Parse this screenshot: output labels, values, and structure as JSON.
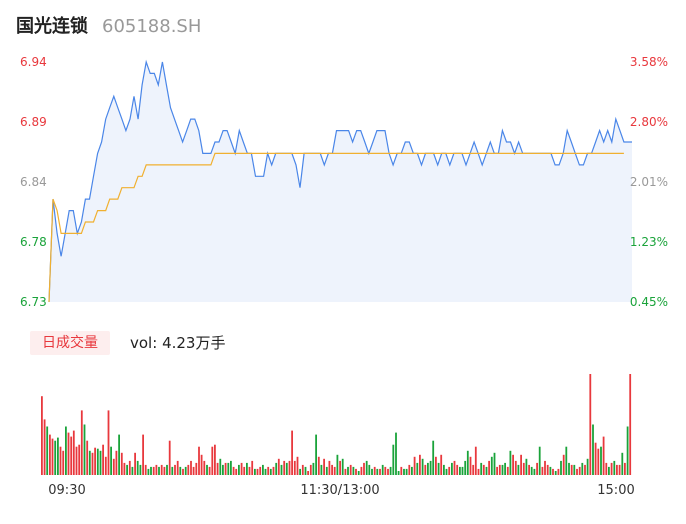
{
  "stock": {
    "name": "国光连锁",
    "code": "605188.SH"
  },
  "volume_panel": {
    "tab_label": "日成交量",
    "readout_label": "vol:",
    "readout_value": "4.23万手"
  },
  "colors": {
    "up": "#e8383d",
    "down": "#1aa33a",
    "neutral": "#999999",
    "price_line": "#4a86e8",
    "avg_line": "#f0b030",
    "area_fill": "#eef3fc"
  },
  "chart_data": [
    {
      "type": "line",
      "title": "",
      "x_ticks": [
        "09:30",
        "11:30/13:00",
        "15:00"
      ],
      "price_ticks": [
        "6.94",
        "6.89",
        "6.84",
        "6.78",
        "6.73"
      ],
      "pct_ticks": [
        "3.58%",
        "2.80%",
        "2.01%",
        "1.23%",
        "0.45%"
      ],
      "ylim": [
        6.73,
        6.94
      ],
      "series": [
        {
          "role": "price",
          "values": [
            6.73,
            6.82,
            6.79,
            6.77,
            6.79,
            6.81,
            6.81,
            6.79,
            6.8,
            6.82,
            6.82,
            6.84,
            6.86,
            6.87,
            6.89,
            6.9,
            6.91,
            6.9,
            6.89,
            6.88,
            6.89,
            6.91,
            6.89,
            6.92,
            6.94,
            6.93,
            6.93,
            6.92,
            6.94,
            6.92,
            6.9,
            6.89,
            6.88,
            6.87,
            6.88,
            6.89,
            6.89,
            6.88,
            6.86,
            6.86,
            6.86,
            6.87,
            6.87,
            6.88,
            6.88,
            6.87,
            6.86,
            6.88,
            6.87,
            6.86,
            6.86,
            6.84,
            6.84,
            6.84,
            6.86,
            6.85,
            6.86,
            6.86,
            6.86,
            6.86,
            6.86,
            6.85,
            6.83,
            6.86,
            6.86,
            6.86,
            6.86,
            6.86,
            6.85,
            6.86,
            6.86,
            6.88,
            6.88,
            6.88,
            6.88,
            6.87,
            6.88,
            6.88,
            6.87,
            6.86,
            6.87,
            6.88,
            6.88,
            6.88,
            6.86,
            6.85,
            6.86,
            6.86,
            6.87,
            6.87,
            6.86,
            6.86,
            6.85,
            6.86,
            6.86,
            6.86,
            6.85,
            6.86,
            6.86,
            6.85,
            6.86,
            6.86,
            6.86,
            6.85,
            6.86,
            6.87,
            6.86,
            6.85,
            6.86,
            6.87,
            6.86,
            6.86,
            6.88,
            6.87,
            6.87,
            6.86,
            6.87,
            6.86,
            6.86,
            6.86,
            6.86,
            6.86,
            6.86,
            6.86,
            6.86,
            6.85,
            6.85,
            6.86,
            6.88,
            6.87,
            6.86,
            6.85,
            6.85,
            6.86,
            6.86,
            6.87,
            6.88,
            6.87,
            6.88,
            6.87,
            6.89,
            6.88,
            6.87,
            6.87,
            6.87
          ],
          "avg": [
            6.73,
            6.82,
            6.81,
            6.79,
            6.79,
            6.79,
            6.79,
            6.79,
            6.79,
            6.8,
            6.8,
            6.8,
            6.81,
            6.81,
            6.81,
            6.82,
            6.82,
            6.82,
            6.83,
            6.83,
            6.83,
            6.83,
            6.84,
            6.84,
            6.85,
            6.85,
            6.85,
            6.85,
            6.85,
            6.85,
            6.85,
            6.85,
            6.85,
            6.85,
            6.85,
            6.85,
            6.85,
            6.85,
            6.85,
            6.85,
            6.85,
            6.86,
            6.86,
            6.86,
            6.86,
            6.86,
            6.86,
            6.86,
            6.86,
            6.86,
            6.86,
            6.86,
            6.86,
            6.86,
            6.86,
            6.86,
            6.86,
            6.86,
            6.86,
            6.86,
            6.86,
            6.86,
            6.86,
            6.86,
            6.86,
            6.86,
            6.86,
            6.86,
            6.86,
            6.86,
            6.86,
            6.86,
            6.86,
            6.86,
            6.86,
            6.86,
            6.86,
            6.86,
            6.86,
            6.86,
            6.86,
            6.86,
            6.86,
            6.86,
            6.86,
            6.86,
            6.86,
            6.86,
            6.86,
            6.86,
            6.86,
            6.86,
            6.86,
            6.86,
            6.86,
            6.86,
            6.86,
            6.86,
            6.86,
            6.86,
            6.86,
            6.86,
            6.86,
            6.86,
            6.86,
            6.86,
            6.86,
            6.86,
            6.86,
            6.86,
            6.86,
            6.86,
            6.86,
            6.86,
            6.86,
            6.86,
            6.86,
            6.86,
            6.86,
            6.86,
            6.86,
            6.86,
            6.86,
            6.86,
            6.86,
            6.86,
            6.86,
            6.86,
            6.86,
            6.86,
            6.86,
            6.86,
            6.86,
            6.86,
            6.86,
            6.86,
            6.86,
            6.86,
            6.86,
            6.86,
            6.86,
            6.86,
            6.86
          ]
        }
      ]
    },
    {
      "type": "bar",
      "title": "",
      "ylim": [
        0,
        100
      ],
      "values": [
        78,
        55,
        48,
        40,
        36,
        34,
        37,
        28,
        24,
        48,
        42,
        38,
        44,
        28,
        30,
        64,
        50,
        34,
        24,
        22,
        27,
        26,
        24,
        30,
        18,
        64,
        28,
        16,
        24,
        40,
        22,
        12,
        10,
        14,
        8,
        22,
        14,
        10,
        40,
        10,
        6,
        8,
        8,
        10,
        8,
        10,
        8,
        10,
        34,
        8,
        10,
        14,
        8,
        6,
        8,
        10,
        14,
        8,
        12,
        28,
        20,
        14,
        10,
        8,
        28,
        30,
        12,
        16,
        10,
        12,
        12,
        14,
        8,
        6,
        10,
        12,
        8,
        12,
        8,
        14,
        6,
        6,
        8,
        10,
        6,
        8,
        6,
        8,
        12,
        16,
        10,
        14,
        12,
        14,
        44,
        14,
        18,
        6,
        10,
        8,
        4,
        10,
        12,
        40,
        18,
        10,
        16,
        8,
        14,
        10,
        8,
        20,
        14,
        16,
        6,
        8,
        10,
        8,
        6,
        4,
        8,
        12,
        14,
        10,
        6,
        8,
        6,
        6,
        10,
        8,
        6,
        8,
        30,
        42,
        4,
        8,
        6,
        6,
        10,
        8,
        18,
        12,
        20,
        16,
        10,
        12,
        14,
        34,
        18,
        12,
        20,
        10,
        6,
        8,
        12,
        14,
        10,
        8,
        8,
        14,
        24,
        18,
        10,
        28,
        6,
        12,
        10,
        8,
        14,
        18,
        22,
        8,
        10,
        10,
        12,
        8,
        24,
        20,
        14,
        10,
        20,
        12,
        16,
        10,
        8,
        6,
        12,
        28,
        8,
        14,
        10,
        8,
        6,
        4,
        6,
        14,
        20,
        28,
        12,
        10,
        10,
        6,
        8,
        12,
        10,
        16,
        104,
        50,
        32,
        26,
        28,
        38,
        12,
        8,
        12,
        14,
        10,
        10,
        22,
        12,
        48,
        100
      ],
      "colors": [
        "r",
        "r",
        "g",
        "r",
        "r",
        "g",
        "g",
        "r",
        "r",
        "g",
        "r",
        "r",
        "r",
        "r",
        "r",
        "r",
        "g",
        "r",
        "g",
        "r",
        "r",
        "g",
        "g",
        "r",
        "r",
        "r",
        "g",
        "r",
        "r",
        "g",
        "r",
        "r",
        "g",
        "r",
        "g",
        "r",
        "g",
        "g",
        "r",
        "r",
        "g",
        "g",
        "r",
        "r",
        "g",
        "r",
        "r",
        "g",
        "r",
        "g",
        "r",
        "r",
        "g",
        "r",
        "g",
        "r",
        "r",
        "r",
        "r",
        "r",
        "r",
        "r",
        "g",
        "r",
        "r",
        "r",
        "r",
        "g",
        "g",
        "r",
        "g",
        "g",
        "r",
        "r",
        "g",
        "r",
        "r",
        "g",
        "r",
        "r",
        "g",
        "r",
        "r",
        "g",
        "g",
        "r",
        "g",
        "r",
        "g",
        "r",
        "g",
        "r",
        "g",
        "r",
        "r",
        "r",
        "r",
        "g",
        "r",
        "g",
        "r",
        "r",
        "g",
        "g",
        "r",
        "g",
        "r",
        "g",
        "r",
        "r",
        "r",
        "g",
        "r",
        "g",
        "r",
        "g",
        "r",
        "g",
        "r",
        "g",
        "r",
        "r",
        "g",
        "g",
        "g",
        "r",
        "g",
        "r",
        "g",
        "r",
        "r",
        "g",
        "g",
        "g",
        "g",
        "r",
        "g",
        "g",
        "r",
        "g",
        "r",
        "g",
        "r",
        "g",
        "r",
        "g",
        "g",
        "g",
        "r",
        "g",
        "r",
        "g",
        "g",
        "r",
        "g",
        "r",
        "r",
        "g",
        "g",
        "g",
        "g",
        "r",
        "r",
        "r",
        "r",
        "g",
        "r",
        "g",
        "r",
        "g",
        "g",
        "r",
        "r",
        "g",
        "g",
        "r",
        "g",
        "r",
        "r",
        "g",
        "r",
        "r",
        "g",
        "r",
        "g",
        "g",
        "r",
        "g",
        "r",
        "r",
        "r",
        "g",
        "r",
        "g",
        "r",
        "g",
        "r",
        "g",
        "g",
        "r",
        "g",
        "r",
        "r",
        "g",
        "r",
        "g",
        "r",
        "g",
        "r",
        "r",
        "g",
        "r",
        "r",
        "g",
        "r",
        "g",
        "r",
        "r",
        "g",
        "r",
        "g",
        "r",
        "g",
        "g"
      ]
    }
  ]
}
